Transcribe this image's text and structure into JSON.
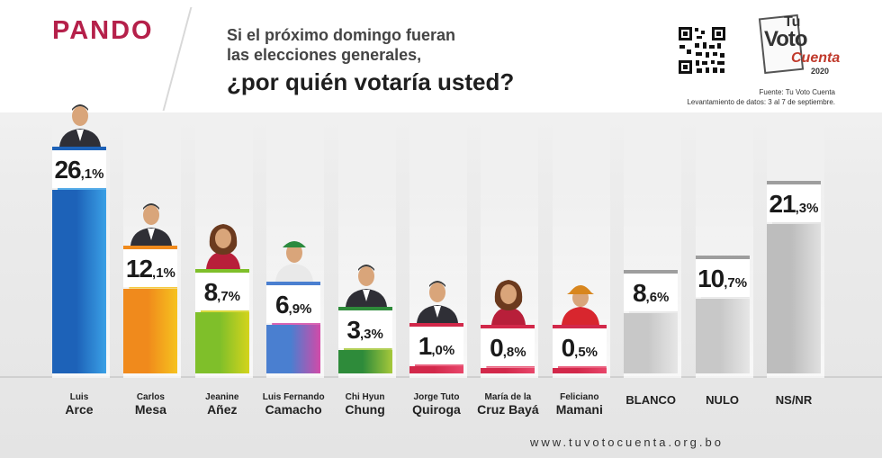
{
  "header": {
    "region": "PANDO",
    "question_line1": "Si el próximo domingo fueran",
    "question_line2": "las elecciones generales,",
    "question_line3": "¿por quién votaría usted?"
  },
  "logo": {
    "tu": "Tu",
    "voto": "Voto",
    "cuenta": "Cuenta",
    "year": "2020"
  },
  "source": {
    "line1": "Fuente: Tu Voto Cuenta",
    "line2": "Levantamiento de datos: 3 al 7 de septiembre."
  },
  "footer": {
    "url": "www.tuvotocuenta.org.bo"
  },
  "chart_data": {
    "type": "bar",
    "categories": [
      "Luis Arce",
      "Carlos Mesa",
      "Jeanine Añez",
      "Luis Fernando Camacho",
      "Chi Hyun Chung",
      "Jorge Tuto Quiroga",
      "María de la Cruz Bayá",
      "Feliciano Mamani",
      "BLANCO",
      "NULO",
      "NS/NR"
    ],
    "values": [
      26.1,
      12.1,
      8.7,
      6.9,
      3.3,
      1.0,
      0.8,
      0.5,
      8.6,
      10.7,
      21.3
    ],
    "value_labels": [
      {
        "int": "26",
        "dec": ",1%"
      },
      {
        "int": "12",
        "dec": ",1%"
      },
      {
        "int": "8",
        "dec": ",7%"
      },
      {
        "int": "6",
        "dec": ",9%"
      },
      {
        "int": "3",
        "dec": ",3%"
      },
      {
        "int": "1",
        "dec": ",0%"
      },
      {
        "int": "0",
        "dec": ",8%"
      },
      {
        "int": "0",
        "dec": ",5%"
      },
      {
        "int": "8",
        "dec": ",6%"
      },
      {
        "int": "10",
        "dec": ",7%"
      },
      {
        "int": "21",
        "dec": ",3%"
      }
    ],
    "labels": [
      {
        "first": "Luis",
        "last": "Arce"
      },
      {
        "first": "Carlos",
        "last": "Mesa"
      },
      {
        "first": "Jeanine",
        "last": "Añez"
      },
      {
        "first": "Luis Fernando",
        "last": "Camacho"
      },
      {
        "first": "Chi Hyun",
        "last": "Chung"
      },
      {
        "first": "Jorge Tuto",
        "last": "Quiroga"
      },
      {
        "first": "María de la",
        "last": "Cruz Bayá"
      },
      {
        "first": "Feliciano",
        "last": "Mamani"
      },
      {
        "first": "",
        "last": "BLANCO"
      },
      {
        "first": "",
        "last": "NULO"
      },
      {
        "first": "",
        "last": "NS/NR"
      }
    ],
    "colors": [
      [
        "#1d62b8",
        "#3aa0e6"
      ],
      [
        "#f08a1c",
        "#f6c21e"
      ],
      [
        "#7fbf2a",
        "#d4d41c"
      ],
      [
        "#4a7fd0",
        "#d24aa8"
      ],
      [
        "#2e8b3a",
        "#a6c83a"
      ],
      [
        "#d2284a",
        "#e8466a"
      ],
      [
        "#d2284a",
        "#e8466a"
      ],
      [
        "#d2284a",
        "#e8466a"
      ],
      [
        "#c8c8c8",
        "#e6e6e6"
      ],
      [
        "#c8c8c8",
        "#e6e6e6"
      ],
      [
        "#bdbdbd",
        "#e0e0e0"
      ]
    ],
    "portraits": [
      "man-suit-icon",
      "man-suit-icon",
      "woman-icon",
      "man-cap-icon",
      "man-suit-icon",
      "man-suit-icon",
      "woman-icon",
      "man-helmet-icon",
      "",
      "",
      ""
    ]
  }
}
